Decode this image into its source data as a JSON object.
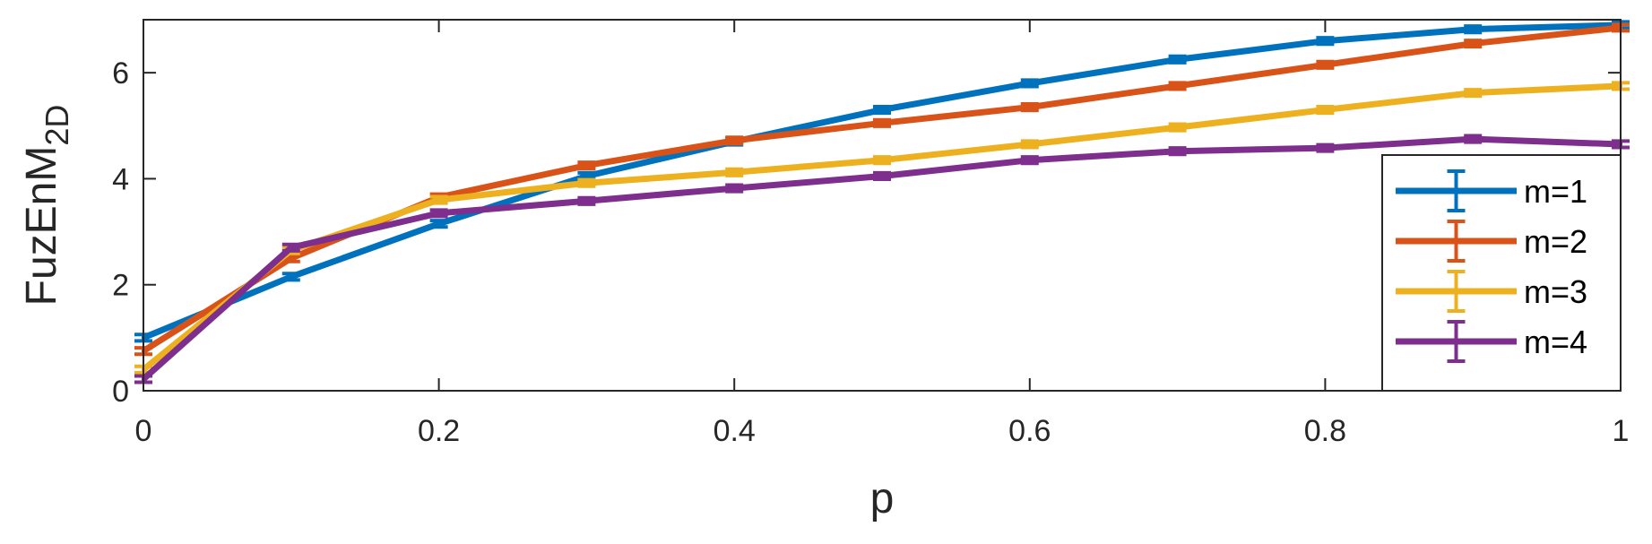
{
  "chart_data": {
    "type": "line",
    "xlabel": "p",
    "ylabel": {
      "base": "FuzEnM",
      "subscript": "2D"
    },
    "xlim": [
      0,
      1
    ],
    "ylim": [
      0,
      7
    ],
    "xticks": [
      "0",
      "0.2",
      "0.4",
      "0.6",
      "0.8",
      "1"
    ],
    "yticks": [
      "0",
      "2",
      "4",
      "6"
    ],
    "grid": false,
    "legend_position": "bottom-right",
    "error_bars": true,
    "x": [
      0,
      0.1,
      0.2,
      0.3,
      0.4,
      0.5,
      0.6,
      0.7,
      0.8,
      0.9,
      1.0
    ],
    "series": [
      {
        "name": "m=1",
        "color": "#0072BD",
        "values": [
          1.0,
          2.15,
          3.15,
          4.05,
          4.7,
          5.3,
          5.8,
          6.25,
          6.6,
          6.82,
          6.9
        ]
      },
      {
        "name": "m=2",
        "color": "#D95319",
        "values": [
          0.75,
          2.5,
          3.65,
          4.25,
          4.72,
          5.05,
          5.35,
          5.75,
          6.15,
          6.55,
          6.85
        ]
      },
      {
        "name": "m=3",
        "color": "#EDB120",
        "values": [
          0.4,
          2.65,
          3.6,
          3.92,
          4.12,
          4.35,
          4.65,
          4.97,
          5.3,
          5.62,
          5.75
        ]
      },
      {
        "name": "m=4",
        "color": "#7E2F8E",
        "values": [
          0.22,
          2.7,
          3.35,
          3.58,
          3.82,
          4.05,
          4.35,
          4.52,
          4.58,
          4.75,
          4.65
        ]
      }
    ]
  }
}
